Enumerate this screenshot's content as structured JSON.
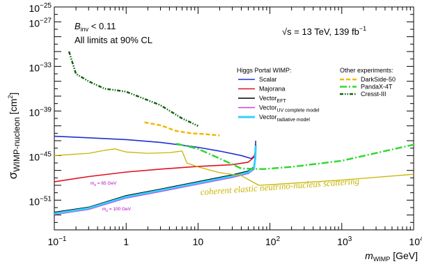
{
  "chart_data": {
    "type": "line",
    "title": "",
    "xlabel": "m",
    "xlabel_sub": "WIMP",
    "xlabel_unit": " [GeV]",
    "ylabel": "σ",
    "ylabel_sub": "WIMP-nucleon",
    "ylabel_unit": " [cm",
    "ylabel_sup": "2",
    "ylabel_end": "]",
    "x_scale": "log",
    "y_scale": "log",
    "xlim": [
      0.1,
      10000
    ],
    "ylim": [
      1e-55,
      1e-25
    ],
    "x_ticks": [
      {
        "value": 0.1,
        "base": "10",
        "exp": "−1"
      },
      {
        "value": 1,
        "text": "1"
      },
      {
        "value": 10,
        "text": "10"
      },
      {
        "value": 100,
        "base": "10",
        "exp": "2"
      },
      {
        "value": 1000,
        "base": "10",
        "exp": "3"
      },
      {
        "value": 10000,
        "base": "10",
        "exp": "4"
      }
    ],
    "y_ticks": [
      {
        "value": 1e-25,
        "base": "10",
        "exp": "−25"
      },
      {
        "value": 1e-27,
        "base": "10",
        "exp": "−27"
      },
      {
        "value": 1e-33,
        "base": "10",
        "exp": "−33"
      },
      {
        "value": 1e-39,
        "base": "10",
        "exp": "−39"
      },
      {
        "value": 1e-45,
        "base": "10",
        "exp": "−45"
      },
      {
        "value": 1e-51,
        "base": "10",
        "exp": "−51"
      }
    ],
    "annotations": {
      "binv_symbol": "B",
      "binv_sub": "inv",
      "binv_value": " < 0.11",
      "cl": "All limits at 90% CL",
      "sqrt_s": "√s",
      "energy": " = 13 TeV, 139 fb",
      "energy_sup": "−1",
      "mass_65": "m",
      "mass_65_sub": "s",
      "mass_65_value": " = 65 GeV",
      "mass_100": "m",
      "mass_100_sub": "s",
      "mass_100_value": " = 100 GeV",
      "neutrino_floor": "coherent elastic neutrino-nucleus scattering"
    },
    "legend": {
      "placement": "top-right",
      "left_title": "Higgs Portal WIMP:",
      "right_title": "Other experiments:"
    },
    "series": [
      {
        "name": "Scalar",
        "group": "higgs",
        "color": "#1f2fd0",
        "dash": "solid",
        "points": [
          [
            0.1,
            4e-43
          ],
          [
            0.3,
            2.5e-43
          ],
          [
            1,
            1.4e-43
          ],
          [
            3,
            6e-44
          ],
          [
            6,
            2.5e-44
          ],
          [
            10,
            1.3e-44
          ],
          [
            20,
            4e-45
          ],
          [
            40,
            1e-45
          ],
          [
            55,
            4e-46
          ],
          [
            62,
            1e-45
          ],
          [
            63,
            1e-44
          ],
          [
            63.5,
            1e-43
          ]
        ]
      },
      {
        "name": "Majorana",
        "group": "higgs",
        "color": "#e01020",
        "dash": "solid",
        "points": [
          [
            0.1,
            3e-49
          ],
          [
            0.3,
            1.5e-48
          ],
          [
            1,
            6e-48
          ],
          [
            3,
            1.5e-47
          ],
          [
            10,
            3.5e-47
          ],
          [
            30,
            6e-47
          ],
          [
            50,
            1.3e-46
          ],
          [
            60,
            6e-46
          ],
          [
            62.5,
            4e-45
          ],
          [
            63.5,
            5e-44
          ]
        ]
      },
      {
        "name": "Vector",
        "sub": "EFT",
        "group": "higgs",
        "color": "#000000",
        "dash": "solid",
        "points": [
          [
            0.1,
            2.3e-53
          ],
          [
            0.3,
            1.1e-52
          ],
          [
            1,
            4e-51
          ],
          [
            3,
            3e-50
          ],
          [
            10,
            3e-49
          ],
          [
            30,
            2.5e-48
          ],
          [
            50,
            8e-48
          ],
          [
            60,
            3e-47
          ],
          [
            62.5,
            5e-46
          ],
          [
            63.5,
            3e-44
          ]
        ]
      },
      {
        "name": "Vector",
        "sub": "UV complete model",
        "group": "higgs",
        "color": "#d040e0",
        "dash": "solid",
        "points": [
          [
            0.1,
            1.2e-53
          ],
          [
            0.3,
            6e-53
          ],
          [
            1,
            2e-51
          ],
          [
            3,
            1.5e-50
          ],
          [
            10,
            1.5e-49
          ],
          [
            30,
            1.2e-48
          ],
          [
            50,
            4e-48
          ],
          [
            60,
            1.5e-47
          ],
          [
            62.5,
            3e-46
          ],
          [
            63.5,
            2e-44
          ]
        ]
      },
      {
        "name": "Vector",
        "sub": "radiative model",
        "group": "higgs",
        "color": "#30d0ff",
        "dash": "solid",
        "points": [
          [
            0.1,
            1.6e-53
          ],
          [
            0.3,
            8e-53
          ],
          [
            1,
            2.8e-51
          ],
          [
            3,
            2.1e-50
          ],
          [
            10,
            2.1e-49
          ],
          [
            30,
            1.7e-48
          ],
          [
            50,
            5.5e-48
          ],
          [
            60,
            2.1e-47
          ],
          [
            62.5,
            4e-46
          ],
          [
            63.5,
            2.5e-44
          ]
        ]
      },
      {
        "name": "DarkSide-50",
        "group": "other",
        "color": "#f0b800",
        "dash": "6,3",
        "points": [
          [
            1.8,
            3e-41
          ],
          [
            3,
            1.2e-41
          ],
          [
            5,
            2e-42
          ],
          [
            8,
            1e-42
          ],
          [
            12,
            8e-43
          ],
          [
            20,
            5e-43
          ]
        ]
      },
      {
        "name": "PandaX-4T",
        "group": "other",
        "color": "#30d830",
        "dash": "10,3,2,3",
        "points": [
          [
            5,
            4e-44
          ],
          [
            10,
            8e-45
          ],
          [
            20,
            4e-46
          ],
          [
            40,
            1.8e-47
          ],
          [
            80,
            1.5e-47
          ],
          [
            200,
            3e-47
          ],
          [
            1000,
            2e-46
          ],
          [
            10000,
            3e-44
          ]
        ]
      },
      {
        "name": "Cresst-III",
        "group": "other",
        "color": "#106010",
        "dash": "5,2,1.5,2,1.5,2",
        "points": [
          [
            0.16,
            1e-31
          ],
          [
            0.2,
            1e-34
          ],
          [
            0.3,
            1e-35
          ],
          [
            0.5,
            1e-36
          ],
          [
            1,
            4e-37
          ],
          [
            3,
            6e-39
          ],
          [
            6,
            1e-40
          ],
          [
            10,
            1e-41
          ]
        ]
      },
      {
        "name": "",
        "group": "floor",
        "color": "#c8b400",
        "dash": "solid",
        "points": [
          [
            0.1,
            1e-45
          ],
          [
            0.3,
            2e-45
          ],
          [
            0.5,
            5e-45
          ],
          [
            0.7,
            8e-45
          ],
          [
            1,
            3e-45
          ],
          [
            2,
            2e-45
          ],
          [
            4,
            2.5e-45
          ],
          [
            6,
            4e-45
          ],
          [
            7,
            1e-46
          ],
          [
            10,
            3e-47
          ],
          [
            20,
            5e-48
          ],
          [
            40,
            2e-48
          ],
          [
            70,
            1e-49
          ],
          [
            100,
            1.2e-49
          ],
          [
            1000,
            5e-49
          ],
          [
            10000,
            3e-48
          ]
        ]
      }
    ]
  }
}
